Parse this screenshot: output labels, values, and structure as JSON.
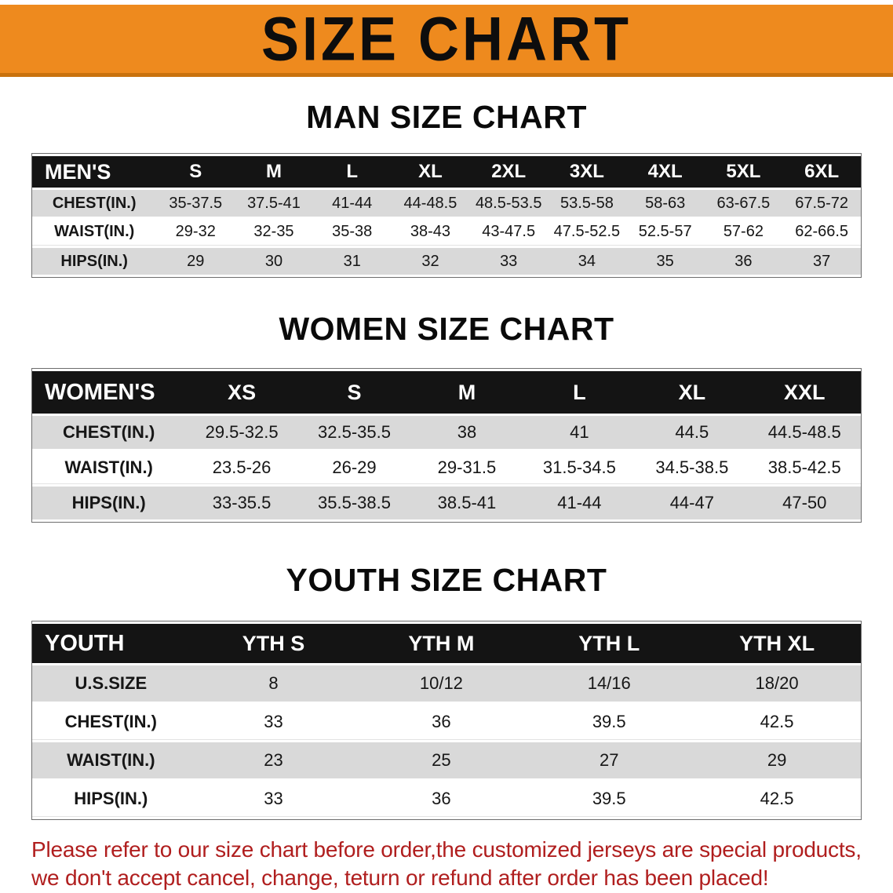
{
  "banner": {
    "title": "SIZE CHART"
  },
  "colors": {
    "banner_bg": "#EE8A1E",
    "banner_edge": "#C9720D",
    "header_bg": "#141414",
    "row_shaded": "#D9D9D9",
    "note_color": "#B01E1E"
  },
  "sections": [
    {
      "id": "men",
      "heading": "MAN SIZE CHART",
      "table": {
        "header": [
          "MEN'S",
          "S",
          "M",
          "L",
          "XL",
          "2XL",
          "3XL",
          "4XL",
          "5XL",
          "6XL"
        ],
        "rows": [
          {
            "label": "CHEST(IN.)",
            "values": [
              "35-37.5",
              "37.5-41",
              "41-44",
              "44-48.5",
              "48.5-53.5",
              "53.5-58",
              "58-63",
              "63-67.5",
              "67.5-72"
            ]
          },
          {
            "label": "WAIST(IN.)",
            "values": [
              "29-32",
              "32-35",
              "35-38",
              "38-43",
              "43-47.5",
              "47.5-52.5",
              "52.5-57",
              "57-62",
              "62-66.5"
            ]
          },
          {
            "label": "HIPS(IN.)",
            "values": [
              "29",
              "30",
              "31",
              "32",
              "33",
              "34",
              "35",
              "36",
              "37"
            ]
          }
        ]
      }
    },
    {
      "id": "women",
      "heading": "WOMEN SIZE CHART",
      "table": {
        "header": [
          "WOMEN'S",
          "XS",
          "S",
          "M",
          "L",
          "XL",
          "XXL"
        ],
        "rows": [
          {
            "label": "CHEST(IN.)",
            "values": [
              "29.5-32.5",
              "32.5-35.5",
              "38",
              "41",
              "44.5",
              "44.5-48.5"
            ]
          },
          {
            "label": "WAIST(IN.)",
            "values": [
              "23.5-26",
              "26-29",
              "29-31.5",
              "31.5-34.5",
              "34.5-38.5",
              "38.5-42.5"
            ]
          },
          {
            "label": "HIPS(IN.)",
            "values": [
              "33-35.5",
              "35.5-38.5",
              "38.5-41",
              "41-44",
              "44-47",
              "47-50"
            ]
          }
        ]
      }
    },
    {
      "id": "youth",
      "heading": "YOUTH SIZE CHART",
      "table": {
        "header": [
          "YOUTH",
          "YTH S",
          "YTH M",
          "YTH L",
          "YTH XL"
        ],
        "rows": [
          {
            "label": "U.S.SIZE",
            "values": [
              "8",
              "10/12",
              "14/16",
              "18/20"
            ]
          },
          {
            "label": "CHEST(IN.)",
            "values": [
              "33",
              "36",
              "39.5",
              "42.5"
            ]
          },
          {
            "label": "WAIST(IN.)",
            "values": [
              "23",
              "25",
              "27",
              "29"
            ]
          },
          {
            "label": "HIPS(IN.)",
            "values": [
              "33",
              "36",
              "39.5",
              "42.5"
            ]
          }
        ]
      }
    }
  ],
  "note": {
    "lines": [
      "Please refer to our size chart before order,the customized jerseys are special products,",
      "we don't accept cancel, change, teturn or refund after order has been placed!"
    ]
  },
  "chart_data": [
    {
      "type": "table",
      "title": "MAN SIZE CHART",
      "columns": [
        "MEN'S",
        "S",
        "M",
        "L",
        "XL",
        "2XL",
        "3XL",
        "4XL",
        "5XL",
        "6XL"
      ],
      "rows": [
        [
          "CHEST(IN.)",
          "35-37.5",
          "37.5-41",
          "41-44",
          "44-48.5",
          "48.5-53.5",
          "53.5-58",
          "58-63",
          "63-67.5",
          "67.5-72"
        ],
        [
          "WAIST(IN.)",
          "29-32",
          "32-35",
          "35-38",
          "38-43",
          "43-47.5",
          "47.5-52.5",
          "52.5-57",
          "57-62",
          "62-66.5"
        ],
        [
          "HIPS(IN.)",
          "29",
          "30",
          "31",
          "32",
          "33",
          "34",
          "35",
          "36",
          "37"
        ]
      ]
    },
    {
      "type": "table",
      "title": "WOMEN SIZE CHART",
      "columns": [
        "WOMEN'S",
        "XS",
        "S",
        "M",
        "L",
        "XL",
        "XXL"
      ],
      "rows": [
        [
          "CHEST(IN.)",
          "29.5-32.5",
          "32.5-35.5",
          "38",
          "41",
          "44.5",
          "44.5-48.5"
        ],
        [
          "WAIST(IN.)",
          "23.5-26",
          "26-29",
          "29-31.5",
          "31.5-34.5",
          "34.5-38.5",
          "38.5-42.5"
        ],
        [
          "HIPS(IN.)",
          "33-35.5",
          "35.5-38.5",
          "38.5-41",
          "41-44",
          "44-47",
          "47-50"
        ]
      ]
    },
    {
      "type": "table",
      "title": "YOUTH SIZE CHART",
      "columns": [
        "YOUTH",
        "YTH S",
        "YTH M",
        "YTH L",
        "YTH XL"
      ],
      "rows": [
        [
          "U.S.SIZE",
          "8",
          "10/12",
          "14/16",
          "18/20"
        ],
        [
          "CHEST(IN.)",
          "33",
          "36",
          "39.5",
          "42.5"
        ],
        [
          "WAIST(IN.)",
          "23",
          "25",
          "27",
          "29"
        ],
        [
          "HIPS(IN.)",
          "33",
          "36",
          "39.5",
          "42.5"
        ]
      ]
    }
  ]
}
